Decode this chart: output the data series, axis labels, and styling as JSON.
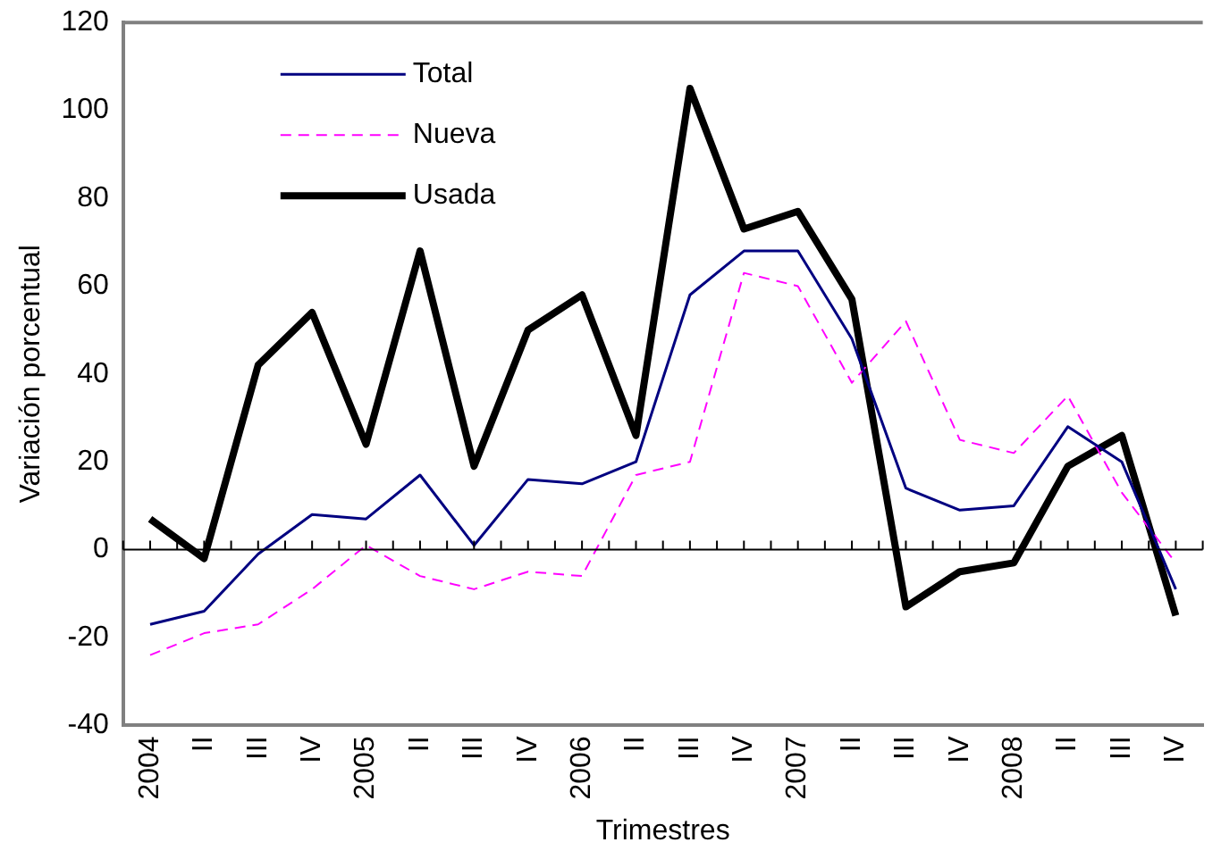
{
  "chart_data": {
    "type": "line",
    "xlabel": "Trimestres",
    "ylabel": "Variación porcentual",
    "categories": [
      "2004",
      "II",
      "III",
      "IV",
      "2005",
      "II",
      "III",
      "IV",
      "2006",
      "II",
      "III",
      "IV",
      "2007",
      "II",
      "III",
      "IV",
      "2008",
      "II",
      "III",
      "IV"
    ],
    "series": [
      {
        "name": "Total",
        "color": "#000080",
        "line_style": "solid",
        "values": [
          -17,
          -14,
          -1,
          8,
          7,
          17,
          1,
          16,
          15,
          20,
          58,
          68,
          68,
          48,
          14,
          9,
          10,
          28,
          20,
          -9
        ]
      },
      {
        "name": "Nueva",
        "color": "#ff00ff",
        "line_style": "dashed",
        "values": [
          -24,
          -19,
          -17,
          -9,
          1,
          -6,
          -9,
          -5,
          -6,
          17,
          20,
          63,
          60,
          38,
          52,
          25,
          22,
          35,
          13,
          -3
        ]
      },
      {
        "name": "Usada",
        "color": "#000000",
        "line_style": "solid",
        "values": [
          7,
          -2,
          42,
          54,
          24,
          68,
          19,
          50,
          58,
          26,
          105,
          73,
          77,
          57,
          -13,
          -5,
          -3,
          19,
          26,
          -15
        ]
      }
    ],
    "ylim": [
      -40,
      120
    ],
    "yticks": [
      -40,
      -20,
      0,
      20,
      40,
      60,
      80,
      100,
      120
    ],
    "grid": false,
    "ref_lines": [
      {
        "axis": "y",
        "value": 0,
        "color": "#000000"
      }
    ],
    "legend": "top left",
    "marker": "none"
  }
}
